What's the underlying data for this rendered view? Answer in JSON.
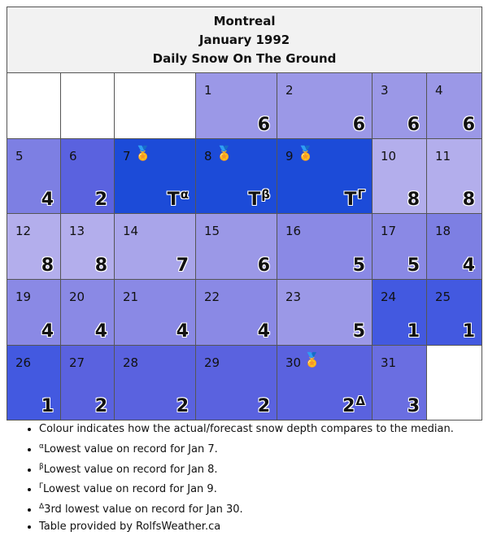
{
  "header": {
    "city": "Montreal",
    "month": "January 1992",
    "subtitle": "Daily Snow On The Ground"
  },
  "medal_icon": "🏅",
  "colors": {
    "much_below": "#1c4bd8",
    "below": "#4359e0",
    "slightly_below": "#5a62df",
    "median_low": "#7d7fe3",
    "median": "#9b98e7",
    "above": "#b3aeec",
    "empty": "#ffffff"
  },
  "weeks": [
    [
      {
        "empty": true
      },
      {
        "empty": true
      },
      {
        "empty": true
      },
      {
        "day": "1",
        "value": "6",
        "color": "#9b98e7"
      },
      {
        "day": "2",
        "value": "6",
        "color": "#9b98e7"
      },
      {
        "day": "3",
        "value": "6",
        "color": "#9b98e7"
      },
      {
        "day": "4",
        "value": "6",
        "color": "#9b98e7"
      }
    ],
    [
      {
        "day": "5",
        "value": "4",
        "color": "#7d7fe3"
      },
      {
        "day": "6",
        "value": "2",
        "color": "#5a62df"
      },
      {
        "day": "7",
        "value": "T",
        "sup": "α",
        "medal": true,
        "color": "#1c4bd8"
      },
      {
        "day": "8",
        "value": "T",
        "sup": "β",
        "medal": true,
        "color": "#1c4bd8"
      },
      {
        "day": "9",
        "value": "T",
        "sup": "Γ",
        "medal": true,
        "color": "#1c4bd8"
      },
      {
        "day": "10",
        "value": "8",
        "color": "#b3aeec"
      },
      {
        "day": "11",
        "value": "8",
        "color": "#b3aeec"
      }
    ],
    [
      {
        "day": "12",
        "value": "8",
        "color": "#b3aeec"
      },
      {
        "day": "13",
        "value": "8",
        "color": "#b3aeec"
      },
      {
        "day": "14",
        "value": "7",
        "color": "#a9a5ea"
      },
      {
        "day": "15",
        "value": "6",
        "color": "#9b98e7"
      },
      {
        "day": "16",
        "value": "5",
        "color": "#8a89e5"
      },
      {
        "day": "17",
        "value": "5",
        "color": "#8a89e5"
      },
      {
        "day": "18",
        "value": "4",
        "color": "#7d7fe3"
      }
    ],
    [
      {
        "day": "19",
        "value": "4",
        "color": "#8a89e5"
      },
      {
        "day": "20",
        "value": "4",
        "color": "#8a89e5"
      },
      {
        "day": "21",
        "value": "4",
        "color": "#8a89e5"
      },
      {
        "day": "22",
        "value": "4",
        "color": "#8a89e5"
      },
      {
        "day": "23",
        "value": "5",
        "color": "#9b98e7"
      },
      {
        "day": "24",
        "value": "1",
        "color": "#4359e0"
      },
      {
        "day": "25",
        "value": "1",
        "color": "#4359e0"
      }
    ],
    [
      {
        "day": "26",
        "value": "1",
        "color": "#4359e0"
      },
      {
        "day": "27",
        "value": "2",
        "color": "#5a62df"
      },
      {
        "day": "28",
        "value": "2",
        "color": "#5a62df"
      },
      {
        "day": "29",
        "value": "2",
        "color": "#5a62df"
      },
      {
        "day": "30",
        "value": "2",
        "sup": "Δ",
        "medal": true,
        "color": "#5a62df"
      },
      {
        "day": "31",
        "value": "3",
        "color": "#6a6ee1"
      },
      {
        "empty": true
      }
    ]
  ],
  "notes": [
    {
      "sup": "",
      "text": "Colour indicates how the actual/forecast snow depth compares to the median."
    },
    {
      "sup": "α",
      "text": "Lowest value on record for Jan 7."
    },
    {
      "sup": "β",
      "text": "Lowest value on record for Jan 8."
    },
    {
      "sup": "Γ",
      "text": "Lowest value on record for Jan 9."
    },
    {
      "sup": "Δ",
      "text": "3rd lowest value on record for Jan 30."
    },
    {
      "sup": "",
      "text": "Table provided by RolfsWeather.ca"
    }
  ]
}
